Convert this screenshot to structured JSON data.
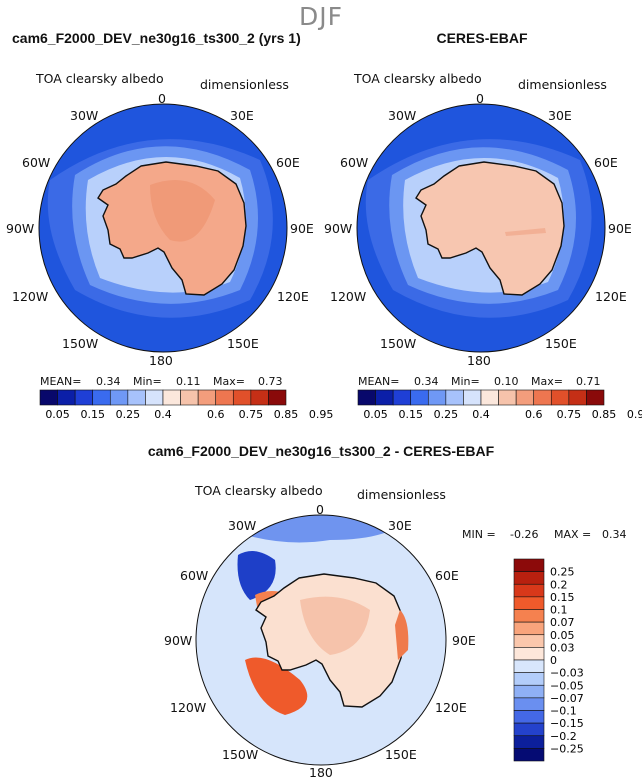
{
  "season": "DJF",
  "colors": {
    "ocean_blue": "#1f55dd",
    "ice_light": "#f7d8c6",
    "land_model": "#f4a88a",
    "land_obs": "#f7c6b0",
    "coast": "#111111"
  },
  "panels": [
    {
      "title": "cam6_F2000_DEV_ne30g16_ts300_2 (yrs 1)",
      "variable": "TOA clearsky albedo",
      "units": "dimensionless",
      "lon_labels": [
        "0",
        "30E",
        "60E",
        "90E",
        "120E",
        "150E",
        "180",
        "150W",
        "120W",
        "90W",
        "60W",
        "30W"
      ],
      "stats": {
        "mean_label": "MEAN=",
        "mean": "0.34",
        "min_label": "Min=",
        "min": "0.11",
        "max_label": "Max=",
        "max": "0.73"
      }
    },
    {
      "title": "CERES-EBAF",
      "variable": "TOA clearsky albedo",
      "units": "dimensionless",
      "lon_labels": [
        "0",
        "30E",
        "60E",
        "90E",
        "120E",
        "150E",
        "180",
        "150W",
        "120W",
        "90W",
        "60W",
        "30W"
      ],
      "stats": {
        "mean_label": "MEAN=",
        "mean": "0.34",
        "min_label": "Min=",
        "min": "0.10",
        "max_label": "Max=",
        "max": "0.71"
      }
    }
  ],
  "colorbar_top": {
    "labels": [
      "0.05",
      "0.15",
      "0.25",
      "0.4",
      "0.6",
      "0.75",
      "0.85",
      "0.95"
    ],
    "colors": [
      "#08086b",
      "#0b1fa8",
      "#1f3fd6",
      "#3a6bef",
      "#6f98f5",
      "#a7c2fb",
      "#d6e3fc",
      "#fbe7dc",
      "#f6c3ab",
      "#f39d7c",
      "#ee7650",
      "#e1502a",
      "#c52f16",
      "#8a0a0a"
    ]
  },
  "diff_panel": {
    "title": "cam6_F2000_DEV_ne30g16_ts300_2 - CERES-EBAF",
    "variable": "TOA clearsky albedo",
    "units": "dimensionless",
    "lon_labels": [
      "0",
      "30E",
      "60E",
      "90E",
      "120E",
      "150E",
      "180",
      "150W",
      "120W",
      "90W",
      "60W",
      "30W"
    ],
    "stats": {
      "min_label": "MIN =",
      "min": "-0.26",
      "max_label": "MAX =",
      "max": "0.34"
    }
  },
  "colorbar_diff": {
    "labels": [
      "0.25",
      "0.2",
      "0.15",
      "0.1",
      "0.07",
      "0.05",
      "0.03",
      "0",
      "−0.03",
      "−0.05",
      "−0.07",
      "−0.1",
      "−0.15",
      "−0.2",
      "−0.25"
    ],
    "colors": [
      "#8c0a0a",
      "#b8200f",
      "#d8381a",
      "#ef5a2b",
      "#f5814f",
      "#f8a47c",
      "#fac7ac",
      "#fde7da",
      "#d8e6fc",
      "#b3cdfa",
      "#8fb0f5",
      "#6a8ff0",
      "#4468e6",
      "#2442cc",
      "#0c1f9c",
      "#050b73"
    ]
  }
}
